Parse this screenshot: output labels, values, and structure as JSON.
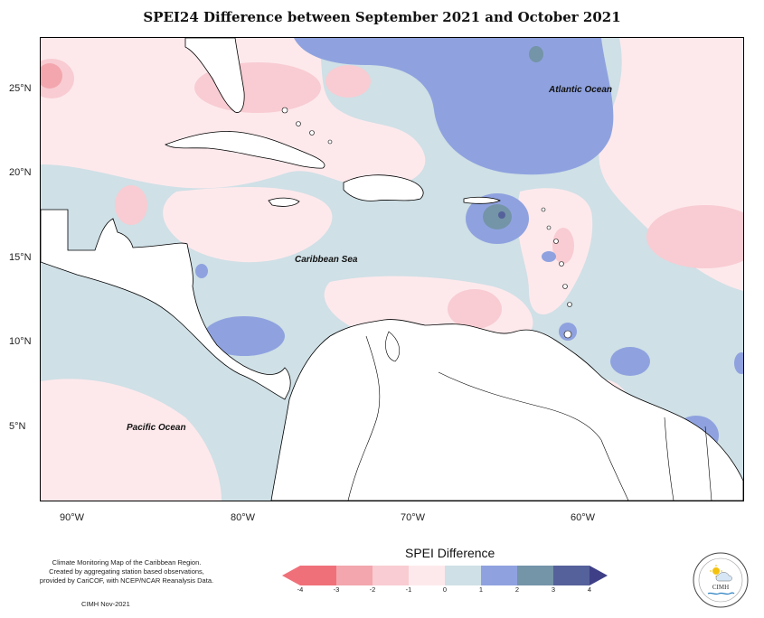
{
  "title": "SPEI24 Difference between September 2021 and October 2021",
  "map": {
    "labels": {
      "atlantic": "Atlantic Ocean",
      "caribbean": "Caribbean Sea",
      "pacific": "Pacific Ocean"
    },
    "lat_labels": [
      "25°N",
      "20°N",
      "15°N",
      "10°N",
      "5°N"
    ],
    "lon_labels": [
      "90°W",
      "80°W",
      "70°W",
      "60°W"
    ]
  },
  "legend": {
    "title": "SPEI Difference",
    "ticks": [
      "-4",
      "-3",
      "-2",
      "-1",
      "0",
      "1",
      "2",
      "3",
      "4"
    ],
    "colors": [
      "#f0707a",
      "#f3a6ad",
      "#f8ccd2",
      "#fde9ec",
      "#cfe0e6",
      "#8fa2df",
      "#7494a8",
      "#55619a"
    ]
  },
  "credit": {
    "line1": "Climate Monitoring Map of the Caribbean Region.",
    "line2": "Created by aggregating station based observations,",
    "line3": "provided by CariCOF, with NCEP/NCAR Reanalysis Data.",
    "stamp": "CIMH Nov-2021"
  },
  "logo": {
    "text": "CIMH"
  }
}
